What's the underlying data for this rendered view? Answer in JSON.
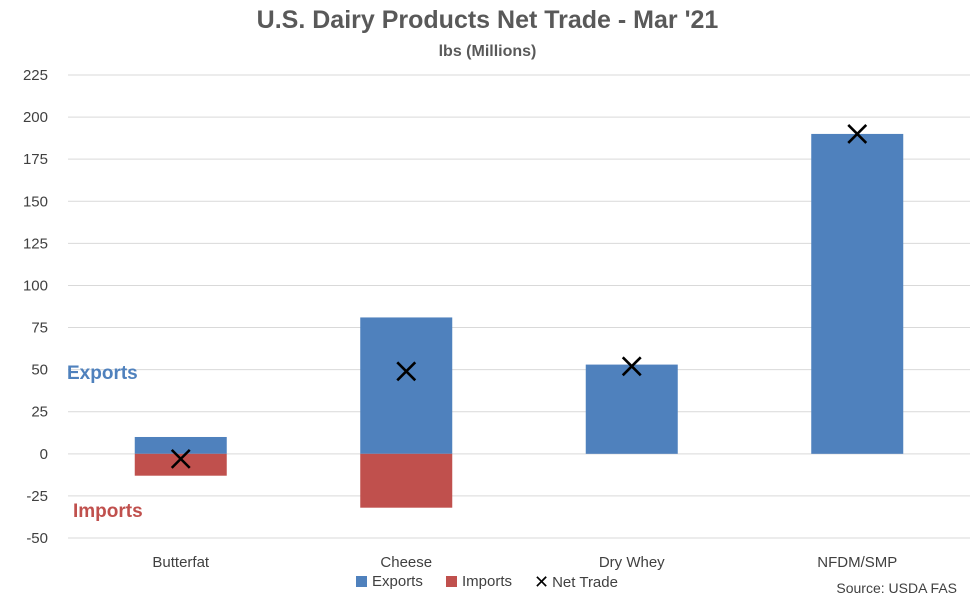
{
  "colors": {
    "exports": "#4f81bd",
    "imports": "#c0504d",
    "net": "#000000",
    "grid": "#d9d9d9",
    "text": "#404040"
  },
  "chart_data": {
    "type": "bar",
    "title": "U.S. Dairy Products Net Trade - Mar '21",
    "subtitle": "lbs (Millions)",
    "categories": [
      "Butterfat",
      "Cheese",
      "Dry Whey",
      "NFDM/SMP"
    ],
    "series": [
      {
        "name": "Exports",
        "values": [
          10,
          81,
          53,
          190
        ]
      },
      {
        "name": "Imports",
        "values": [
          -13,
          -32,
          0,
          0
        ]
      },
      {
        "name": "Net Trade",
        "values": [
          -3,
          49,
          52,
          190
        ]
      }
    ],
    "ylim": [
      -50,
      225
    ],
    "yticks": [
      "-50",
      "-25",
      "0",
      "25",
      "50",
      "75",
      "100",
      "125",
      "150",
      "175",
      "200",
      "225"
    ],
    "grid": true,
    "legend": "bottom",
    "annotations": [
      "Exports",
      "Imports"
    ],
    "source": "Source: USDA FAS"
  }
}
